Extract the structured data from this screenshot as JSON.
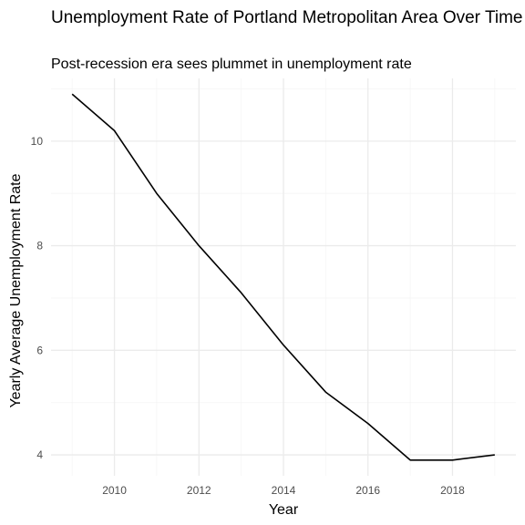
{
  "chart_data": {
    "type": "line",
    "title": "Unemployment Rate of Portland Metropolitan Area Over Time",
    "subtitle": "Post-recession era sees plummet in unemployment rate",
    "xlabel": "Year",
    "ylabel": "Yearly Average Unemployment Rate",
    "x": [
      2009,
      2010,
      2011,
      2012,
      2013,
      2014,
      2015,
      2016,
      2017,
      2018,
      2019
    ],
    "series": [
      {
        "values": [
          10.9,
          10.2,
          9.0,
          8.0,
          7.1,
          6.1,
          5.2,
          4.6,
          3.9,
          3.9,
          4.0
        ]
      }
    ],
    "xlim": [
      2008.5,
      2019.5
    ],
    "ylim": [
      3.6,
      11.2
    ],
    "xticks": [
      2010,
      2012,
      2014,
      2016,
      2018
    ],
    "yticks": [
      4,
      6,
      8,
      10
    ],
    "grid": true,
    "line_color": "#000000",
    "grid_major_color": "#ebebeb",
    "grid_minor_color": "#f5f5f5"
  }
}
